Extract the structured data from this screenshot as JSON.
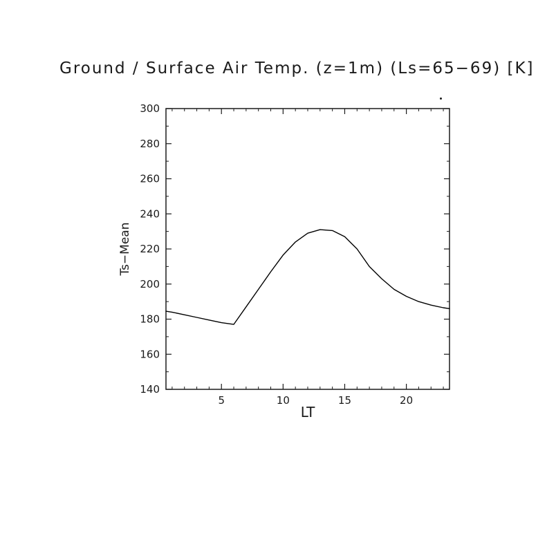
{
  "page": {
    "background": "#ffffff",
    "foreground": "#1a1a1a"
  },
  "chart_data": {
    "type": "line",
    "title": "Ground / Surface Air Temp. (z=1m) (Ls=65−69) [K]",
    "xlabel": "LT",
    "ylabel": "Ts−Mean",
    "xlim": [
      0.5,
      23.5
    ],
    "ylim": [
      140,
      300
    ],
    "xticks": [
      5,
      10,
      15,
      20
    ],
    "yticks": [
      140,
      160,
      180,
      200,
      220,
      240,
      260,
      280,
      300
    ],
    "x_minor_step": 1,
    "y_minor_step": 10,
    "grid": false,
    "legend": "none",
    "line_color": "#000000",
    "series": [
      {
        "name": "Ts-Mean",
        "x": [
          0.5,
          1,
          2,
          3,
          4,
          5,
          6,
          7,
          8,
          9,
          10,
          11,
          12,
          13,
          14,
          15,
          16,
          17,
          18,
          19,
          20,
          21,
          22,
          23,
          23.5
        ],
        "y": [
          184.5,
          184,
          182.5,
          181,
          179.5,
          178,
          177,
          187,
          197,
          207,
          216.5,
          224,
          229,
          231,
          230.5,
          227,
          220,
          210,
          203,
          197,
          193,
          190,
          188,
          186.5,
          186
        ]
      }
    ]
  }
}
